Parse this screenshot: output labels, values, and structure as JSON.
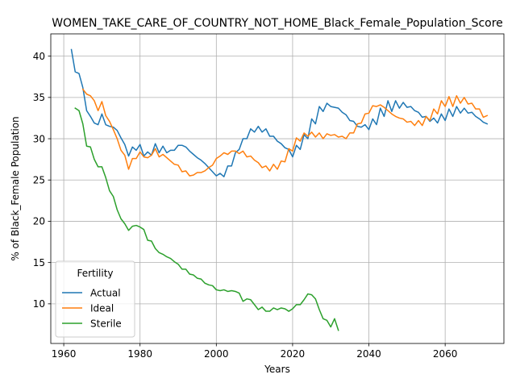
{
  "chart_data": {
    "type": "line",
    "title": "WOMEN_TAKE_CARE_OF_COUNTRY_NOT_HOME_Black_Female_Population_Score",
    "xlabel": "Years",
    "ylabel": "% of Black_Female Population",
    "xlim": [
      1956.6,
      2075.4
    ],
    "ylim": [
      5.2,
      42.7
    ],
    "grid": true,
    "x_ticks": [
      1960,
      1980,
      2000,
      2020,
      2040,
      2060
    ],
    "y_ticks": [
      10,
      15,
      20,
      25,
      30,
      35,
      40
    ],
    "legend": {
      "title": "Fertility",
      "position": "lower-left"
    },
    "series": [
      {
        "name": "Actual",
        "color": "#1f77b4",
        "points": [
          [
            1962,
            40.8
          ],
          [
            1963,
            38.1
          ],
          [
            1964,
            37.9
          ],
          [
            1965,
            36.2
          ],
          [
            1966,
            33.4
          ],
          [
            1967,
            32.7
          ],
          [
            1968,
            31.9
          ],
          [
            1969,
            31.7
          ],
          [
            1970,
            33.0
          ],
          [
            1971,
            31.7
          ],
          [
            1972,
            31.5
          ],
          [
            1973,
            31.4
          ],
          [
            1974,
            31.0
          ],
          [
            1975,
            30.1
          ],
          [
            1976,
            29.3
          ],
          [
            1977,
            27.9
          ],
          [
            1978,
            29.0
          ],
          [
            1979,
            28.6
          ],
          [
            1980,
            29.3
          ],
          [
            1981,
            27.9
          ],
          [
            1982,
            28.4
          ],
          [
            1983,
            28.0
          ],
          [
            1984,
            29.4
          ],
          [
            1985,
            28.3
          ],
          [
            1986,
            29.1
          ],
          [
            1987,
            28.3
          ],
          [
            1988,
            28.6
          ],
          [
            1989,
            28.6
          ],
          [
            1990,
            29.2
          ],
          [
            1991,
            29.2
          ],
          [
            1992,
            29.0
          ],
          [
            1993,
            28.5
          ],
          [
            1994,
            28.1
          ],
          [
            1995,
            27.7
          ],
          [
            1996,
            27.4
          ],
          [
            1997,
            27.0
          ],
          [
            1998,
            26.5
          ],
          [
            1999,
            26.0
          ],
          [
            2000,
            25.5
          ],
          [
            2001,
            25.8
          ],
          [
            2002,
            25.4
          ],
          [
            2003,
            26.7
          ],
          [
            2004,
            26.7
          ],
          [
            2005,
            28.3
          ],
          [
            2006,
            28.7
          ],
          [
            2007,
            30.0
          ],
          [
            2008,
            30.0
          ],
          [
            2009,
            31.2
          ],
          [
            2010,
            30.8
          ],
          [
            2011,
            31.5
          ],
          [
            2012,
            30.8
          ],
          [
            2013,
            31.2
          ],
          [
            2014,
            30.3
          ],
          [
            2015,
            30.3
          ],
          [
            2016,
            29.7
          ],
          [
            2017,
            29.4
          ],
          [
            2018,
            28.9
          ],
          [
            2019,
            28.7
          ],
          [
            2020,
            27.8
          ],
          [
            2021,
            29.2
          ],
          [
            2022,
            28.7
          ],
          [
            2023,
            30.5
          ],
          [
            2024,
            30.0
          ],
          [
            2025,
            32.4
          ],
          [
            2026,
            31.8
          ],
          [
            2027,
            33.9
          ],
          [
            2028,
            33.3
          ],
          [
            2029,
            34.3
          ],
          [
            2030,
            33.9
          ],
          [
            2031,
            33.8
          ],
          [
            2032,
            33.7
          ],
          [
            2033,
            33.2
          ],
          [
            2034,
            32.9
          ],
          [
            2035,
            32.2
          ],
          [
            2036,
            32.1
          ],
          [
            2037,
            31.5
          ],
          [
            2038,
            31.4
          ],
          [
            2039,
            31.7
          ],
          [
            2040,
            31.1
          ],
          [
            2041,
            32.4
          ],
          [
            2042,
            31.7
          ],
          [
            2043,
            33.7
          ],
          [
            2044,
            32.7
          ],
          [
            2045,
            34.6
          ],
          [
            2046,
            33.3
          ],
          [
            2047,
            34.6
          ],
          [
            2048,
            33.7
          ],
          [
            2049,
            34.4
          ],
          [
            2050,
            33.8
          ],
          [
            2051,
            33.9
          ],
          [
            2052,
            33.4
          ],
          [
            2053,
            33.2
          ],
          [
            2054,
            32.6
          ],
          [
            2055,
            32.7
          ],
          [
            2056,
            32.1
          ],
          [
            2057,
            32.5
          ],
          [
            2058,
            31.9
          ],
          [
            2059,
            33.0
          ],
          [
            2060,
            32.2
          ],
          [
            2061,
            33.6
          ],
          [
            2062,
            32.7
          ],
          [
            2063,
            33.9
          ],
          [
            2064,
            33.1
          ],
          [
            2065,
            33.7
          ],
          [
            2066,
            33.1
          ],
          [
            2067,
            33.2
          ],
          [
            2068,
            32.7
          ],
          [
            2069,
            32.4
          ],
          [
            2070,
            32.0
          ],
          [
            2071,
            31.8
          ]
        ]
      },
      {
        "name": "Ideal",
        "color": "#ff7f0e",
        "points": [
          [
            1965,
            36.0
          ],
          [
            1966,
            35.4
          ],
          [
            1967,
            35.2
          ],
          [
            1968,
            34.6
          ],
          [
            1969,
            33.4
          ],
          [
            1970,
            34.5
          ],
          [
            1971,
            32.8
          ],
          [
            1972,
            32.1
          ],
          [
            1973,
            31.1
          ],
          [
            1974,
            30.0
          ],
          [
            1975,
            28.6
          ],
          [
            1976,
            28.0
          ],
          [
            1977,
            26.3
          ],
          [
            1978,
            27.6
          ],
          [
            1979,
            27.6
          ],
          [
            1980,
            28.4
          ],
          [
            1981,
            27.8
          ],
          [
            1982,
            27.7
          ],
          [
            1983,
            28.0
          ],
          [
            1984,
            28.8
          ],
          [
            1985,
            27.8
          ],
          [
            1986,
            28.1
          ],
          [
            1987,
            27.7
          ],
          [
            1988,
            27.3
          ],
          [
            1989,
            26.9
          ],
          [
            1990,
            26.8
          ],
          [
            1991,
            26.0
          ],
          [
            1992,
            26.1
          ],
          [
            1993,
            25.5
          ],
          [
            1994,
            25.6
          ],
          [
            1995,
            25.9
          ],
          [
            1996,
            25.9
          ],
          [
            1997,
            26.1
          ],
          [
            1998,
            26.5
          ],
          [
            1999,
            26.8
          ],
          [
            2000,
            27.6
          ],
          [
            2001,
            27.9
          ],
          [
            2002,
            28.3
          ],
          [
            2003,
            28.1
          ],
          [
            2004,
            28.5
          ],
          [
            2005,
            28.5
          ],
          [
            2006,
            28.2
          ],
          [
            2007,
            28.5
          ],
          [
            2008,
            27.8
          ],
          [
            2009,
            27.9
          ],
          [
            2010,
            27.4
          ],
          [
            2011,
            27.1
          ],
          [
            2012,
            26.5
          ],
          [
            2013,
            26.7
          ],
          [
            2014,
            26.1
          ],
          [
            2015,
            26.9
          ],
          [
            2016,
            26.3
          ],
          [
            2017,
            27.3
          ],
          [
            2018,
            27.2
          ],
          [
            2019,
            28.8
          ],
          [
            2020,
            28.5
          ],
          [
            2021,
            30.1
          ],
          [
            2022,
            29.7
          ],
          [
            2023,
            30.7
          ],
          [
            2024,
            30.3
          ],
          [
            2025,
            30.8
          ],
          [
            2026,
            30.2
          ],
          [
            2027,
            30.7
          ],
          [
            2028,
            30.0
          ],
          [
            2029,
            30.6
          ],
          [
            2030,
            30.4
          ],
          [
            2031,
            30.5
          ],
          [
            2032,
            30.2
          ],
          [
            2033,
            30.3
          ],
          [
            2034,
            30.0
          ],
          [
            2035,
            30.7
          ],
          [
            2036,
            30.7
          ],
          [
            2037,
            31.8
          ],
          [
            2038,
            31.9
          ],
          [
            2039,
            33.0
          ],
          [
            2040,
            33.1
          ],
          [
            2041,
            34.0
          ],
          [
            2042,
            33.9
          ],
          [
            2043,
            34.1
          ],
          [
            2044,
            33.8
          ],
          [
            2045,
            33.4
          ],
          [
            2046,
            33.0
          ],
          [
            2047,
            32.7
          ],
          [
            2048,
            32.5
          ],
          [
            2049,
            32.4
          ],
          [
            2050,
            32.0
          ],
          [
            2051,
            32.1
          ],
          [
            2052,
            31.6
          ],
          [
            2053,
            32.2
          ],
          [
            2054,
            31.6
          ],
          [
            2055,
            32.7
          ],
          [
            2056,
            32.2
          ],
          [
            2057,
            33.6
          ],
          [
            2058,
            33.0
          ],
          [
            2059,
            34.6
          ],
          [
            2060,
            33.9
          ],
          [
            2061,
            35.1
          ],
          [
            2062,
            33.9
          ],
          [
            2063,
            35.2
          ],
          [
            2064,
            34.3
          ],
          [
            2065,
            35.0
          ],
          [
            2066,
            34.2
          ],
          [
            2067,
            34.3
          ],
          [
            2068,
            33.6
          ],
          [
            2069,
            33.6
          ],
          [
            2070,
            32.6
          ],
          [
            2071,
            32.8
          ]
        ]
      },
      {
        "name": "Sterile",
        "color": "#2ca02c",
        "points": [
          [
            1963,
            33.7
          ],
          [
            1964,
            33.4
          ],
          [
            1965,
            31.8
          ],
          [
            1966,
            29.1
          ],
          [
            1967,
            29.0
          ],
          [
            1968,
            27.5
          ],
          [
            1969,
            26.6
          ],
          [
            1970,
            26.6
          ],
          [
            1971,
            25.3
          ],
          [
            1972,
            23.7
          ],
          [
            1973,
            23.0
          ],
          [
            1974,
            21.4
          ],
          [
            1975,
            20.3
          ],
          [
            1976,
            19.7
          ],
          [
            1977,
            18.9
          ],
          [
            1978,
            19.4
          ],
          [
            1979,
            19.5
          ],
          [
            1980,
            19.3
          ],
          [
            1981,
            19.0
          ],
          [
            1982,
            17.7
          ],
          [
            1983,
            17.6
          ],
          [
            1984,
            16.7
          ],
          [
            1985,
            16.2
          ],
          [
            1986,
            16.0
          ],
          [
            1987,
            15.7
          ],
          [
            1988,
            15.5
          ],
          [
            1989,
            15.1
          ],
          [
            1990,
            14.8
          ],
          [
            1991,
            14.2
          ],
          [
            1992,
            14.2
          ],
          [
            1993,
            13.6
          ],
          [
            1994,
            13.5
          ],
          [
            1995,
            13.1
          ],
          [
            1996,
            13.0
          ],
          [
            1997,
            12.5
          ],
          [
            1998,
            12.3
          ],
          [
            1999,
            12.2
          ],
          [
            2000,
            11.7
          ],
          [
            2001,
            11.6
          ],
          [
            2002,
            11.7
          ],
          [
            2003,
            11.5
          ],
          [
            2004,
            11.6
          ],
          [
            2005,
            11.5
          ],
          [
            2006,
            11.3
          ],
          [
            2007,
            10.3
          ],
          [
            2008,
            10.6
          ],
          [
            2009,
            10.5
          ],
          [
            2010,
            9.9
          ],
          [
            2011,
            9.3
          ],
          [
            2012,
            9.6
          ],
          [
            2013,
            9.1
          ],
          [
            2014,
            9.1
          ],
          [
            2015,
            9.5
          ],
          [
            2016,
            9.3
          ],
          [
            2017,
            9.5
          ],
          [
            2018,
            9.4
          ],
          [
            2019,
            9.1
          ],
          [
            2020,
            9.4
          ],
          [
            2021,
            9.9
          ],
          [
            2022,
            9.9
          ],
          [
            2023,
            10.5
          ],
          [
            2024,
            11.2
          ],
          [
            2025,
            11.1
          ],
          [
            2026,
            10.6
          ],
          [
            2027,
            9.3
          ],
          [
            2028,
            8.2
          ],
          [
            2029,
            8.0
          ],
          [
            2030,
            7.2
          ],
          [
            2031,
            8.2
          ],
          [
            2032,
            6.8
          ]
        ]
      }
    ]
  }
}
